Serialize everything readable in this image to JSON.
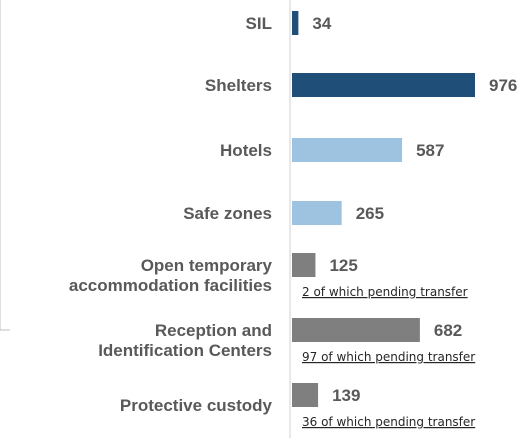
{
  "colors": {
    "dark_blue": "#1f4e79",
    "light_blue": "#9dc3e0",
    "gray": "#7f7f7f",
    "label_gray": "#595959"
  },
  "chart_data": {
    "type": "bar",
    "orientation": "horizontal",
    "categories": [
      "SIL",
      "Shelters",
      "Hotels",
      "Safe zones",
      "Open temporary accommodation facilities",
      "Reception and Identification Centers",
      "Protective custody"
    ],
    "category_lines": [
      [
        "SIL"
      ],
      [
        "Shelters"
      ],
      [
        "Hotels"
      ],
      [
        "Safe zones"
      ],
      [
        "Open temporary",
        "accommodation facilities"
      ],
      [
        "Reception and",
        "Identification Centers"
      ],
      [
        "Protective custody"
      ]
    ],
    "values": [
      34,
      976,
      587,
      265,
      125,
      682,
      139
    ],
    "bar_colors": [
      "#1f4e79",
      "#1f4e79",
      "#9dc3e0",
      "#9dc3e0",
      "#7f7f7f",
      "#7f7f7f",
      "#7f7f7f"
    ],
    "notes": [
      "",
      "",
      "",
      "",
      "2 of which pending transfer",
      "97 of which pending transfer",
      "36 of which pending transfer"
    ],
    "xlim": [
      0,
      976
    ],
    "grid": false,
    "legend": "none",
    "title": "",
    "xlabel": "",
    "ylabel": ""
  }
}
